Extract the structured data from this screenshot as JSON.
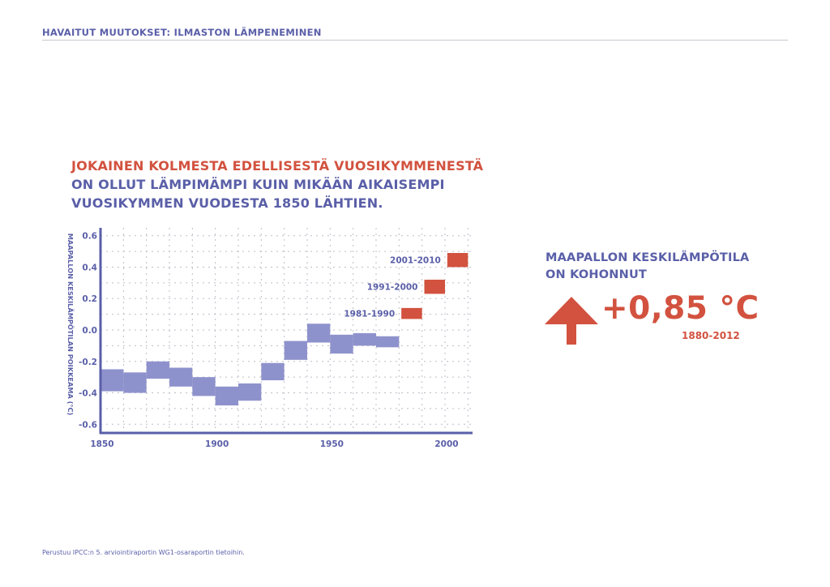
{
  "header": {
    "title": "HAVAITUT MUUTOKSET: ILMASTON LÄMPENEMINEN"
  },
  "headline": {
    "line1": "JOKAINEN KOLMESTA EDELLISESTÄ VUOSIKYMMENESTÄ",
    "line2": "ON OLLUT LÄMPIMÄMPI KUIN MIKÄÄN AIKAISEMPI",
    "line3": "VUOSIKYMMEN VUODESTA 1850 LÄHTIEN."
  },
  "callout": {
    "title_line1": "MAAPALLON KESKILÄMPÖTILA",
    "title_line2": "ON KOHONNUT",
    "value": "+0,85 °C",
    "period": "1880-2012",
    "icon": "arrow-up-icon"
  },
  "footer": {
    "source": "Perustuu IPCC:n 5. arviointiraportin WG1-osaraportin tietoihin."
  },
  "colors": {
    "blue": "#5a5fa8",
    "box_blue": "#8e92cc",
    "red": "#d2523f",
    "grid": "#bdbdc8"
  },
  "chart_data": {
    "type": "bar",
    "ylabel": "MAAPALLON KESKILÄMPÖTILAN POIKKEAMA (°C)",
    "xlim": [
      1850,
      2012
    ],
    "ylim": [
      -0.65,
      0.65
    ],
    "xticks": [
      1850,
      1900,
      1950,
      2000
    ],
    "yticks": [
      0.6,
      0.4,
      0.2,
      0.0,
      -0.2,
      -0.4,
      -0.6
    ],
    "ytick_labels": [
      "0.6",
      "0.4",
      "0.2",
      "0.0",
      "-0.2",
      "-0.4",
      "-0.6"
    ],
    "grid": true,
    "series": [
      {
        "name": "",
        "color": "#8e92cc",
        "decades": [
          {
            "start": 1850,
            "end": 1860,
            "low": -0.39,
            "high": -0.25
          },
          {
            "start": 1860,
            "end": 1870,
            "low": -0.4,
            "high": -0.27
          },
          {
            "start": 1870,
            "end": 1880,
            "low": -0.31,
            "high": -0.2
          },
          {
            "start": 1880,
            "end": 1890,
            "low": -0.36,
            "high": -0.24
          },
          {
            "start": 1890,
            "end": 1900,
            "low": -0.42,
            "high": -0.3
          },
          {
            "start": 1900,
            "end": 1910,
            "low": -0.48,
            "high": -0.36
          },
          {
            "start": 1910,
            "end": 1920,
            "low": -0.45,
            "high": -0.34
          },
          {
            "start": 1920,
            "end": 1930,
            "low": -0.32,
            "high": -0.21
          },
          {
            "start": 1930,
            "end": 1940,
            "low": -0.19,
            "high": -0.07
          },
          {
            "start": 1940,
            "end": 1950,
            "low": -0.08,
            "high": 0.04
          },
          {
            "start": 1950,
            "end": 1960,
            "low": -0.15,
            "high": -0.03
          },
          {
            "start": 1960,
            "end": 1970,
            "low": -0.1,
            "high": -0.02
          },
          {
            "start": 1970,
            "end": 1980,
            "low": -0.11,
            "high": -0.04
          }
        ]
      },
      {
        "name": "",
        "color": "#d2523f",
        "decades": [
          {
            "start": 1980,
            "end": 1990,
            "low": 0.07,
            "high": 0.14,
            "label": "1981-1990"
          },
          {
            "start": 1990,
            "end": 2000,
            "low": 0.23,
            "high": 0.32,
            "label": "1991-2000"
          },
          {
            "start": 2000,
            "end": 2010,
            "low": 0.4,
            "high": 0.49,
            "label": "2001-2010"
          }
        ]
      }
    ]
  }
}
